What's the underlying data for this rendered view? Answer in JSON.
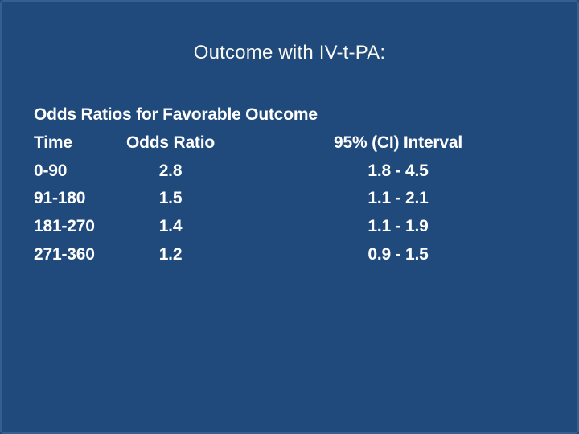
{
  "slide": {
    "title": "Outcome with IV-t-PA:",
    "background_color": "#204A7C",
    "title_color": "#FAFAF2",
    "body_text_color": "#FFFFFF"
  },
  "table": {
    "caption": "Odds Ratios for Favorable Outcome",
    "columns": [
      "Time",
      "Odds Ratio",
      "95% (CI) Interval"
    ],
    "rows": [
      {
        "time": "0-90",
        "odds_ratio": "2.8",
        "ci": "1.8 - 4.5"
      },
      {
        "time": "91-180",
        "odds_ratio": "1.5",
        "ci": "1.1 - 2.1"
      },
      {
        "time": "181-270",
        "odds_ratio": "1.4",
        "ci": "1.1 - 1.9"
      },
      {
        "time": "271-360",
        "odds_ratio": "1.2",
        "ci": "0.9 - 1.5"
      }
    ]
  }
}
